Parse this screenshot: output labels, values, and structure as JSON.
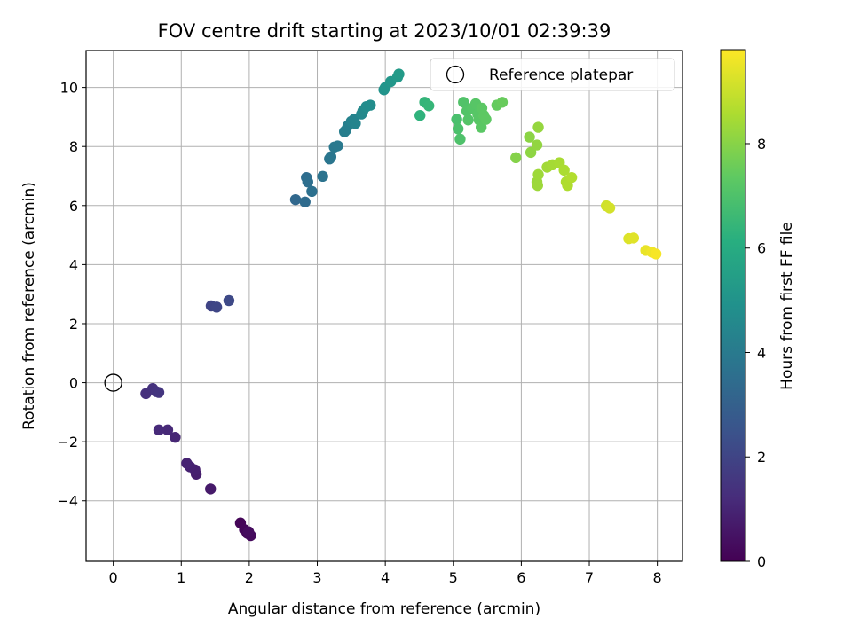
{
  "chart_data": {
    "type": "scatter",
    "title": "FOV centre drift starting at 2023/10/01 02:39:39",
    "xlabel": "Angular distance from reference (arcmin)",
    "ylabel": "Rotation from reference (arcmin)",
    "xlim": [
      -0.4,
      8.37
    ],
    "ylim": [
      -6.05,
      11.25
    ],
    "xticks": [
      0,
      1,
      2,
      3,
      4,
      5,
      6,
      7,
      8
    ],
    "yticks": [
      -4,
      -2,
      0,
      2,
      4,
      6,
      8,
      10
    ],
    "grid": true,
    "legend": {
      "position": "top-right",
      "entries": [
        "Reference platepar"
      ]
    },
    "reference_point": {
      "x": 0,
      "y": 0
    },
    "colorbar": {
      "label": "Hours from first FF file",
      "colormap": "viridis",
      "range": [
        0,
        9.8
      ],
      "ticks": [
        0,
        2,
        4,
        6,
        8
      ]
    },
    "points": [
      {
        "x": 1.87,
        "y": -4.75,
        "h": 0.1
      },
      {
        "x": 1.93,
        "y": -4.98,
        "h": 0.15
      },
      {
        "x": 1.97,
        "y": -5.1,
        "h": 0.2
      },
      {
        "x": 2.02,
        "y": -5.18,
        "h": 0.25
      },
      {
        "x": 1.99,
        "y": -5.05,
        "h": 0.3
      },
      {
        "x": 1.43,
        "y": -3.6,
        "h": 0.7
      },
      {
        "x": 1.22,
        "y": -3.1,
        "h": 0.8
      },
      {
        "x": 1.2,
        "y": -2.95,
        "h": 0.85
      },
      {
        "x": 1.13,
        "y": -2.85,
        "h": 0.9
      },
      {
        "x": 1.08,
        "y": -2.73,
        "h": 0.95
      },
      {
        "x": 0.91,
        "y": -1.85,
        "h": 1.05
      },
      {
        "x": 0.8,
        "y": -1.6,
        "h": 1.1
      },
      {
        "x": 0.67,
        "y": -1.6,
        "h": 1.15
      },
      {
        "x": 0.48,
        "y": -0.37,
        "h": 1.35
      },
      {
        "x": 0.58,
        "y": -0.2,
        "h": 1.4
      },
      {
        "x": 0.63,
        "y": -0.3,
        "h": 1.45
      },
      {
        "x": 0.67,
        "y": -0.33,
        "h": 1.5
      },
      {
        "x": 1.44,
        "y": 2.6,
        "h": 2.0
      },
      {
        "x": 1.52,
        "y": 2.56,
        "h": 2.05
      },
      {
        "x": 1.7,
        "y": 2.78,
        "h": 2.15
      },
      {
        "x": 2.68,
        "y": 6.2,
        "h": 3.3
      },
      {
        "x": 2.82,
        "y": 6.12,
        "h": 3.4
      },
      {
        "x": 2.84,
        "y": 6.95,
        "h": 3.5
      },
      {
        "x": 2.86,
        "y": 6.8,
        "h": 3.55
      },
      {
        "x": 2.92,
        "y": 6.48,
        "h": 3.6
      },
      {
        "x": 3.08,
        "y": 6.99,
        "h": 3.7
      },
      {
        "x": 3.18,
        "y": 7.58,
        "h": 3.8
      },
      {
        "x": 3.2,
        "y": 7.65,
        "h": 3.85
      },
      {
        "x": 3.25,
        "y": 7.98,
        "h": 3.9
      },
      {
        "x": 3.3,
        "y": 8.02,
        "h": 3.95
      },
      {
        "x": 3.4,
        "y": 8.5,
        "h": 4.1
      },
      {
        "x": 3.42,
        "y": 8.55,
        "h": 4.15
      },
      {
        "x": 3.45,
        "y": 8.7,
        "h": 4.2
      },
      {
        "x": 3.5,
        "y": 8.85,
        "h": 4.3
      },
      {
        "x": 3.54,
        "y": 8.92,
        "h": 4.35
      },
      {
        "x": 3.56,
        "y": 8.78,
        "h": 4.4
      },
      {
        "x": 3.65,
        "y": 9.1,
        "h": 4.55
      },
      {
        "x": 3.67,
        "y": 9.2,
        "h": 4.6
      },
      {
        "x": 3.72,
        "y": 9.35,
        "h": 4.7
      },
      {
        "x": 3.78,
        "y": 9.4,
        "h": 4.75
      },
      {
        "x": 3.98,
        "y": 9.92,
        "h": 5.0
      },
      {
        "x": 4.0,
        "y": 10.0,
        "h": 5.05
      },
      {
        "x": 4.08,
        "y": 10.2,
        "h": 5.15
      },
      {
        "x": 4.18,
        "y": 10.35,
        "h": 5.25
      },
      {
        "x": 4.2,
        "y": 10.45,
        "h": 5.3
      },
      {
        "x": 4.51,
        "y": 9.05,
        "h": 6.3
      },
      {
        "x": 4.58,
        "y": 9.5,
        "h": 6.4
      },
      {
        "x": 4.64,
        "y": 9.38,
        "h": 6.45
      },
      {
        "x": 5.05,
        "y": 8.92,
        "h": 6.9
      },
      {
        "x": 5.07,
        "y": 8.6,
        "h": 6.95
      },
      {
        "x": 5.1,
        "y": 8.25,
        "h": 7.0
      },
      {
        "x": 5.15,
        "y": 9.5,
        "h": 7.05
      },
      {
        "x": 5.2,
        "y": 9.2,
        "h": 7.1
      },
      {
        "x": 5.22,
        "y": 8.9,
        "h": 7.12
      },
      {
        "x": 5.28,
        "y": 9.3,
        "h": 7.15
      },
      {
        "x": 5.33,
        "y": 9.45,
        "h": 7.18
      },
      {
        "x": 5.36,
        "y": 9.1,
        "h": 7.2
      },
      {
        "x": 5.38,
        "y": 8.9,
        "h": 7.22
      },
      {
        "x": 5.41,
        "y": 8.65,
        "h": 7.25
      },
      {
        "x": 5.42,
        "y": 9.3,
        "h": 7.28
      },
      {
        "x": 5.45,
        "y": 9.05,
        "h": 7.3
      },
      {
        "x": 5.48,
        "y": 8.92,
        "h": 7.32
      },
      {
        "x": 5.64,
        "y": 9.4,
        "h": 7.45
      },
      {
        "x": 5.72,
        "y": 9.5,
        "h": 7.5
      },
      {
        "x": 5.92,
        "y": 7.62,
        "h": 7.95
      },
      {
        "x": 6.12,
        "y": 8.32,
        "h": 8.05
      },
      {
        "x": 6.14,
        "y": 7.8,
        "h": 8.1
      },
      {
        "x": 6.23,
        "y": 8.05,
        "h": 8.15
      },
      {
        "x": 6.25,
        "y": 8.65,
        "h": 8.2
      },
      {
        "x": 6.23,
        "y": 6.8,
        "h": 8.3
      },
      {
        "x": 6.24,
        "y": 6.68,
        "h": 8.32
      },
      {
        "x": 6.25,
        "y": 7.05,
        "h": 8.35
      },
      {
        "x": 6.38,
        "y": 7.3,
        "h": 8.4
      },
      {
        "x": 6.46,
        "y": 7.38,
        "h": 8.45
      },
      {
        "x": 6.56,
        "y": 7.45,
        "h": 8.5
      },
      {
        "x": 6.63,
        "y": 7.2,
        "h": 8.55
      },
      {
        "x": 6.66,
        "y": 6.8,
        "h": 8.58
      },
      {
        "x": 6.68,
        "y": 6.68,
        "h": 8.6
      },
      {
        "x": 6.74,
        "y": 6.95,
        "h": 8.65
      },
      {
        "x": 7.25,
        "y": 5.99,
        "h": 9.1
      },
      {
        "x": 7.3,
        "y": 5.92,
        "h": 9.15
      },
      {
        "x": 7.58,
        "y": 4.88,
        "h": 9.3
      },
      {
        "x": 7.65,
        "y": 4.9,
        "h": 9.35
      },
      {
        "x": 7.83,
        "y": 4.48,
        "h": 9.5
      },
      {
        "x": 7.92,
        "y": 4.42,
        "h": 9.6
      },
      {
        "x": 7.98,
        "y": 4.36,
        "h": 9.7
      }
    ]
  }
}
